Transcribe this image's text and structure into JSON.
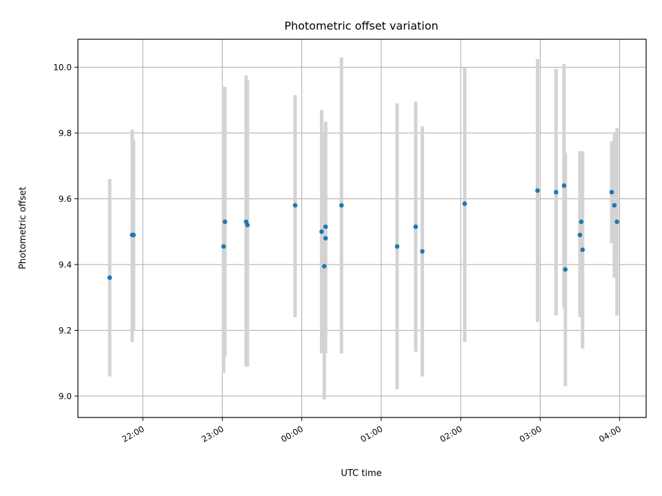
{
  "chart_data": {
    "type": "scatter",
    "title": "Photometric offset variation",
    "xlabel": "UTC time",
    "ylabel": "Photometric offset",
    "xlim": [
      "21:11",
      "04:20"
    ],
    "ylim": [
      8.935,
      10.085
    ],
    "xticks": [
      "22:00",
      "23:00",
      "00:00",
      "01:00",
      "02:00",
      "03:00",
      "04:00"
    ],
    "yticks": [
      "9.0",
      "9.2",
      "9.4",
      "9.6",
      "9.8",
      "10.0"
    ],
    "grid": true,
    "colors": {
      "point": "#1f77b4",
      "errorbar": "#d3d3d3",
      "grid": "#b0b0b0"
    },
    "points": [
      {
        "x": "21:35",
        "y": 9.36,
        "yerr_low": 9.06,
        "yerr_high": 9.66
      },
      {
        "x": "21:52",
        "y": 9.49,
        "yerr_low": 9.165,
        "yerr_high": 9.81
      },
      {
        "x": "21:53",
        "y": 9.49,
        "yerr_low": 9.2,
        "yerr_high": 9.78
      },
      {
        "x": "23:01",
        "y": 9.455,
        "yerr_low": 9.07,
        "yerr_high": 9.94
      },
      {
        "x": "23:02",
        "y": 9.53,
        "yerr_low": 9.12,
        "yerr_high": 9.94
      },
      {
        "x": "23:18",
        "y": 9.53,
        "yerr_low": 9.09,
        "yerr_high": 9.975
      },
      {
        "x": "23:19",
        "y": 9.52,
        "yerr_low": 9.09,
        "yerr_high": 9.96
      },
      {
        "x": "23:55",
        "y": 9.58,
        "yerr_low": 9.24,
        "yerr_high": 9.915
      },
      {
        "x": "00:15",
        "y": 9.5,
        "yerr_low": 9.13,
        "yerr_high": 9.87
      },
      {
        "x": "00:17",
        "y": 9.395,
        "yerr_low": 8.99,
        "yerr_high": 9.8
      },
      {
        "x": "00:18",
        "y": 9.48,
        "yerr_low": 9.13,
        "yerr_high": 9.835
      },
      {
        "x": "00:18",
        "y": 9.515,
        "yerr_low": 9.2,
        "yerr_high": 9.83
      },
      {
        "x": "00:30",
        "y": 9.58,
        "yerr_low": 9.13,
        "yerr_high": 10.03
      },
      {
        "x": "01:12",
        "y": 9.455,
        "yerr_low": 9.02,
        "yerr_high": 9.89
      },
      {
        "x": "01:26",
        "y": 9.515,
        "yerr_low": 9.135,
        "yerr_high": 9.895
      },
      {
        "x": "01:31",
        "y": 9.44,
        "yerr_low": 9.06,
        "yerr_high": 9.82
      },
      {
        "x": "02:03",
        "y": 9.585,
        "yerr_low": 9.165,
        "yerr_high": 10.0
      },
      {
        "x": "02:58",
        "y": 9.625,
        "yerr_low": 9.225,
        "yerr_high": 10.025
      },
      {
        "x": "03:12",
        "y": 9.62,
        "yerr_low": 9.245,
        "yerr_high": 9.995
      },
      {
        "x": "03:18",
        "y": 9.64,
        "yerr_low": 9.27,
        "yerr_high": 10.01
      },
      {
        "x": "03:19",
        "y": 9.385,
        "yerr_low": 9.03,
        "yerr_high": 9.74
      },
      {
        "x": "03:30",
        "y": 9.49,
        "yerr_low": 9.24,
        "yerr_high": 9.745
      },
      {
        "x": "03:31",
        "y": 9.53,
        "yerr_low": 9.32,
        "yerr_high": 9.74
      },
      {
        "x": "03:32",
        "y": 9.445,
        "yerr_low": 9.145,
        "yerr_high": 9.745
      },
      {
        "x": "03:54",
        "y": 9.62,
        "yerr_low": 9.465,
        "yerr_high": 9.775
      },
      {
        "x": "03:56",
        "y": 9.58,
        "yerr_low": 9.36,
        "yerr_high": 9.8
      },
      {
        "x": "03:58",
        "y": 9.53,
        "yerr_low": 9.245,
        "yerr_high": 9.815
      }
    ]
  }
}
